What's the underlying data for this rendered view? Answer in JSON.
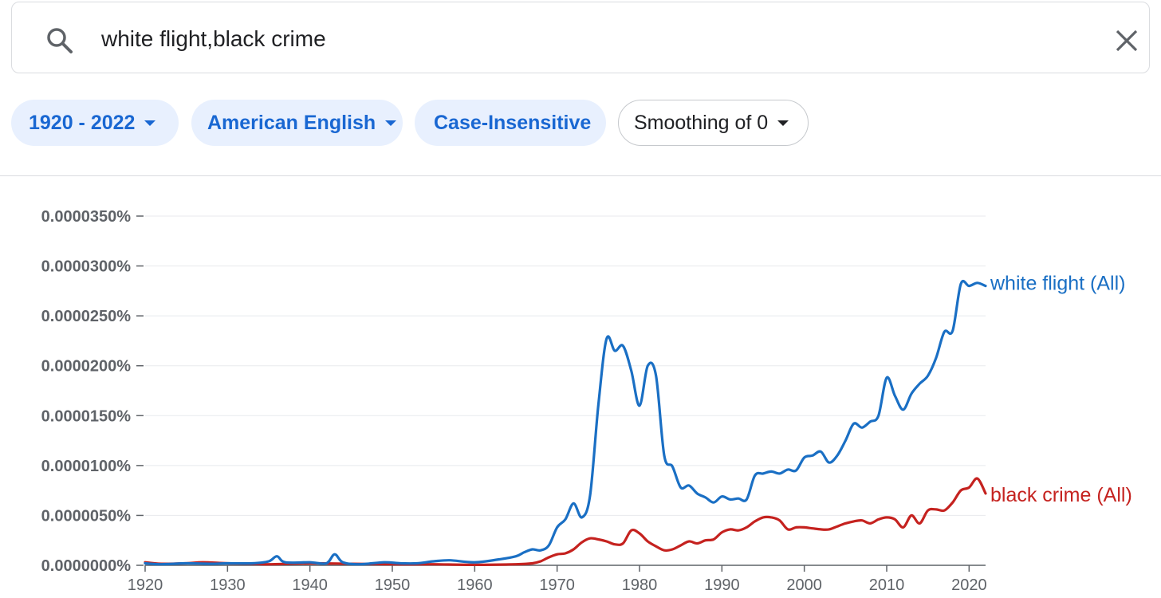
{
  "search": {
    "query": "white flight,black crime",
    "search_icon": "search-icon",
    "clear_icon": "close-icon"
  },
  "filters": {
    "year_range": "1920 - 2022",
    "corpus": "American English",
    "case": "Case-Insensitive",
    "smoothing": "Smoothing of 0"
  },
  "colors": {
    "chip_bg": "#e8f0fe",
    "chip_text": "#1967d2",
    "white_flight": "#1a6fc4",
    "black_crime": "#c5221f",
    "grid": "#e8eaed",
    "axis_text": "#5f6368"
  },
  "chart_data": {
    "type": "line",
    "xlim": [
      1920,
      2022
    ],
    "ylim": [
      0,
      3.5e-07
    ],
    "x_ticks": [
      1920,
      1930,
      1940,
      1950,
      1960,
      1970,
      1980,
      1990,
      2000,
      2010,
      2020
    ],
    "y_ticks": [
      {
        "value": 0,
        "label": "0.0000000%"
      },
      {
        "value": 5e-08,
        "label": "0.0000050%"
      },
      {
        "value": 1e-07,
        "label": "0.0000100%"
      },
      {
        "value": 1.5e-07,
        "label": "0.0000150%"
      },
      {
        "value": 2e-07,
        "label": "0.0000200%"
      },
      {
        "value": 2.5e-07,
        "label": "0.0000250%"
      },
      {
        "value": 3e-07,
        "label": "0.0000300%"
      },
      {
        "value": 3.5e-07,
        "label": "0.0000350%"
      }
    ],
    "grid": true,
    "legend": "line-end labels",
    "series": [
      {
        "name": "white flight (All)",
        "color": "#1a6fc4",
        "points": [
          [
            1920,
            2e-09
          ],
          [
            1922,
            1e-09
          ],
          [
            1925,
            2e-09
          ],
          [
            1928,
            1.5e-09
          ],
          [
            1930,
            2e-09
          ],
          [
            1933,
            2e-09
          ],
          [
            1935,
            4e-09
          ],
          [
            1936,
            9e-09
          ],
          [
            1937,
            3e-09
          ],
          [
            1940,
            3e-09
          ],
          [
            1942,
            2e-09
          ],
          [
            1943,
            1.1e-08
          ],
          [
            1944,
            3e-09
          ],
          [
            1946,
            1e-09
          ],
          [
            1949,
            3e-09
          ],
          [
            1951,
            2e-09
          ],
          [
            1953,
            2e-09
          ],
          [
            1955,
            4e-09
          ],
          [
            1957,
            5e-09
          ],
          [
            1960,
            3e-09
          ],
          [
            1963,
            6e-09
          ],
          [
            1965,
            9e-09
          ],
          [
            1966,
            1.3e-08
          ],
          [
            1967,
            1.6e-08
          ],
          [
            1968,
            1.5e-08
          ],
          [
            1969,
            2e-08
          ],
          [
            1970,
            3.8e-08
          ],
          [
            1971,
            4.6e-08
          ],
          [
            1972,
            6.2e-08
          ],
          [
            1973,
            4.8e-08
          ],
          [
            1974,
            7e-08
          ],
          [
            1975,
            1.6e-07
          ],
          [
            1976,
            2.27e-07
          ],
          [
            1977,
            2.15e-07
          ],
          [
            1978,
            2.2e-07
          ],
          [
            1979,
            1.95e-07
          ],
          [
            1980,
            1.6e-07
          ],
          [
            1981,
            2e-07
          ],
          [
            1982,
            1.9e-07
          ],
          [
            1983,
            1.1e-07
          ],
          [
            1984,
            9.9e-08
          ],
          [
            1985,
            7.8e-08
          ],
          [
            1986,
            8e-08
          ],
          [
            1987,
            7.2e-08
          ],
          [
            1988,
            6.8e-08
          ],
          [
            1989,
            6.3e-08
          ],
          [
            1990,
            6.9e-08
          ],
          [
            1991,
            6.6e-08
          ],
          [
            1992,
            6.7e-08
          ],
          [
            1993,
            6.6e-08
          ],
          [
            1994,
            9e-08
          ],
          [
            1995,
            9.2e-08
          ],
          [
            1996,
            9.4e-08
          ],
          [
            1997,
            9.2e-08
          ],
          [
            1998,
            9.6e-08
          ],
          [
            1999,
            9.5e-08
          ],
          [
            2000,
            1.08e-07
          ],
          [
            2001,
            1.1e-07
          ],
          [
            2002,
            1.14e-07
          ],
          [
            2003,
            1.03e-07
          ],
          [
            2004,
            1.1e-07
          ],
          [
            2005,
            1.25e-07
          ],
          [
            2006,
            1.42e-07
          ],
          [
            2007,
            1.38e-07
          ],
          [
            2008,
            1.44e-07
          ],
          [
            2009,
            1.5e-07
          ],
          [
            2010,
            1.88e-07
          ],
          [
            2011,
            1.7e-07
          ],
          [
            2012,
            1.56e-07
          ],
          [
            2013,
            1.72e-07
          ],
          [
            2014,
            1.82e-07
          ],
          [
            2015,
            1.9e-07
          ],
          [
            2016,
            2.08e-07
          ],
          [
            2017,
            2.34e-07
          ],
          [
            2018,
            2.35e-07
          ],
          [
            2019,
            2.82e-07
          ],
          [
            2020,
            2.8e-07
          ],
          [
            2021,
            2.83e-07
          ],
          [
            2022,
            2.8e-07
          ]
        ]
      },
      {
        "name": "black crime (All)",
        "color": "#c5221f",
        "points": [
          [
            1920,
            3e-09
          ],
          [
            1922,
            1.5e-09
          ],
          [
            1925,
            2e-09
          ],
          [
            1927,
            3e-09
          ],
          [
            1930,
            2e-09
          ],
          [
            1933,
            1.5e-09
          ],
          [
            1935,
            1e-09
          ],
          [
            1940,
            2e-09
          ],
          [
            1945,
            1.5e-09
          ],
          [
            1950,
            1e-09
          ],
          [
            1955,
            1e-09
          ],
          [
            1960,
            5e-10
          ],
          [
            1965,
            1e-09
          ],
          [
            1967,
            2e-09
          ],
          [
            1968,
            4e-09
          ],
          [
            1969,
            8e-09
          ],
          [
            1970,
            1.1e-08
          ],
          [
            1971,
            1.2e-08
          ],
          [
            1972,
            1.6e-08
          ],
          [
            1973,
            2.3e-08
          ],
          [
            1974,
            2.7e-08
          ],
          [
            1975,
            2.6e-08
          ],
          [
            1976,
            2.4e-08
          ],
          [
            1977,
            2.1e-08
          ],
          [
            1978,
            2.2e-08
          ],
          [
            1979,
            3.5e-08
          ],
          [
            1980,
            3.2e-08
          ],
          [
            1981,
            2.4e-08
          ],
          [
            1982,
            1.9e-08
          ],
          [
            1983,
            1.5e-08
          ],
          [
            1984,
            1.6e-08
          ],
          [
            1985,
            2e-08
          ],
          [
            1986,
            2.4e-08
          ],
          [
            1987,
            2.2e-08
          ],
          [
            1988,
            2.5e-08
          ],
          [
            1989,
            2.6e-08
          ],
          [
            1990,
            3.3e-08
          ],
          [
            1991,
            3.6e-08
          ],
          [
            1992,
            3.5e-08
          ],
          [
            1993,
            3.8e-08
          ],
          [
            1994,
            4.4e-08
          ],
          [
            1995,
            4.8e-08
          ],
          [
            1996,
            4.8e-08
          ],
          [
            1997,
            4.5e-08
          ],
          [
            1998,
            3.6e-08
          ],
          [
            1999,
            3.8e-08
          ],
          [
            2000,
            3.8e-08
          ],
          [
            2001,
            3.7e-08
          ],
          [
            2002,
            3.6e-08
          ],
          [
            2003,
            3.6e-08
          ],
          [
            2004,
            3.9e-08
          ],
          [
            2005,
            4.2e-08
          ],
          [
            2006,
            4.4e-08
          ],
          [
            2007,
            4.5e-08
          ],
          [
            2008,
            4.2e-08
          ],
          [
            2009,
            4.6e-08
          ],
          [
            2010,
            4.8e-08
          ],
          [
            2011,
            4.6e-08
          ],
          [
            2012,
            3.8e-08
          ],
          [
            2013,
            5e-08
          ],
          [
            2014,
            4.2e-08
          ],
          [
            2015,
            5.5e-08
          ],
          [
            2016,
            5.6e-08
          ],
          [
            2017,
            5.5e-08
          ],
          [
            2018,
            6.3e-08
          ],
          [
            2019,
            7.5e-08
          ],
          [
            2020,
            7.8e-08
          ],
          [
            2021,
            8.7e-08
          ],
          [
            2022,
            7.2e-08
          ]
        ]
      }
    ]
  }
}
